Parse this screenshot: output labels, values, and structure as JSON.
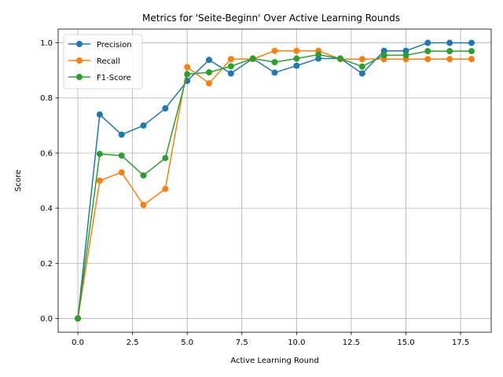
{
  "chart_data": {
    "type": "line",
    "title": "Metrics for 'Seite-Beginn' Over Active Learning Rounds",
    "xlabel": "Active Learning Round",
    "ylabel": "Score",
    "xlim": [
      -0.9,
      18.9
    ],
    "ylim": [
      -0.05,
      1.05
    ],
    "xticks": [
      0.0,
      2.5,
      5.0,
      7.5,
      10.0,
      12.5,
      15.0,
      17.5
    ],
    "xtick_labels": [
      "0.0",
      "2.5",
      "5.0",
      "7.5",
      "10.0",
      "12.5",
      "15.0",
      "17.5"
    ],
    "yticks": [
      0.0,
      0.2,
      0.4,
      0.6,
      0.8,
      1.0
    ],
    "ytick_labels": [
      "0.0",
      "0.2",
      "0.4",
      "0.6",
      "0.8",
      "1.0"
    ],
    "grid": true,
    "legend_position": "top-left",
    "x": [
      0,
      1,
      2,
      3,
      4,
      5,
      6,
      7,
      8,
      9,
      10,
      11,
      12,
      13,
      14,
      15,
      16,
      17,
      18
    ],
    "series": [
      {
        "name": "Precision",
        "color": "#1f77b4",
        "values": [
          0.0,
          0.74,
          0.667,
          0.7,
          0.762,
          0.862,
          0.938,
          0.889,
          0.943,
          0.892,
          0.917,
          0.943,
          0.943,
          0.889,
          0.971,
          0.971,
          1.0,
          1.0,
          1.0
        ]
      },
      {
        "name": "Recall",
        "color": "#ff7f0e",
        "values": [
          0.0,
          0.5,
          0.53,
          0.412,
          0.47,
          0.912,
          0.853,
          0.941,
          0.941,
          0.971,
          0.971,
          0.971,
          0.941,
          0.941,
          0.941,
          0.941,
          0.941,
          0.941,
          0.941
        ]
      },
      {
        "name": "F1-Score",
        "color": "#2ca02c",
        "values": [
          0.0,
          0.597,
          0.591,
          0.519,
          0.582,
          0.886,
          0.893,
          0.915,
          0.943,
          0.93,
          0.943,
          0.957,
          0.943,
          0.914,
          0.955,
          0.955,
          0.97,
          0.97,
          0.97
        ]
      }
    ]
  }
}
